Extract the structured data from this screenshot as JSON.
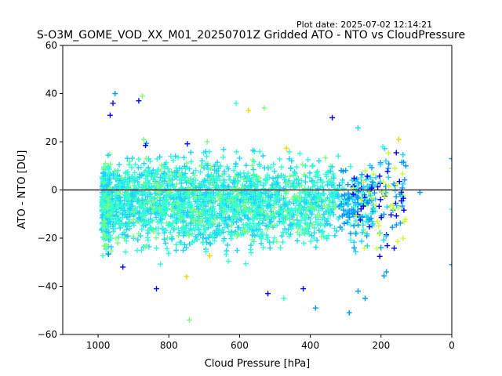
{
  "header": {
    "plot_date": "Plot date: 2025-07-02 12:14:21"
  },
  "chart_data": {
    "type": "scatter",
    "title": "S-O3M_GOME_VOD_XX_M01_20250701Z Gridded ATO - NTO vs CloudPressure",
    "xlabel": "Cloud Pressure [hPa]",
    "ylabel": "ATO - NTO [DU]",
    "xlim": [
      1100,
      0
    ],
    "ylim": [
      -60,
      60
    ],
    "x_inverted": true,
    "xticks": [
      1000,
      800,
      600,
      400,
      200,
      0
    ],
    "yticks": [
      60,
      40,
      20,
      0,
      -20,
      -40,
      -60
    ],
    "reference_line_y": 0,
    "marker": "+",
    "colors": [
      "#0000ff",
      "#0096ff",
      "#1ed2ff",
      "#31ffd4",
      "#7dff7a",
      "#c8ff2f",
      "#ffd200",
      "#ff9a00"
    ],
    "point_density_note_cloud": {
      "x_range_dense": [
        990,
        210
      ],
      "y_mean": -5,
      "y_spread_range": [
        -33,
        22
      ]
    },
    "outliers": [
      {
        "x": 952,
        "y": 40,
        "c": "#0096ff"
      },
      {
        "x": 958,
        "y": 36,
        "c": "#0000ff"
      },
      {
        "x": 966,
        "y": 31,
        "c": "#0000ff"
      },
      {
        "x": 885,
        "y": 37,
        "c": "#0000ff"
      },
      {
        "x": 875,
        "y": 39,
        "c": "#7dff7a"
      },
      {
        "x": 610,
        "y": 36,
        "c": "#31ffd4"
      },
      {
        "x": 530,
        "y": 34,
        "c": "#7dff7a"
      },
      {
        "x": 575,
        "y": 33,
        "c": "#ffd200"
      },
      {
        "x": 338,
        "y": 30,
        "c": "#0000ff"
      },
      {
        "x": 150,
        "y": 21,
        "c": "#ffd200"
      },
      {
        "x": 195,
        "y": 18,
        "c": "#31ffd4"
      },
      {
        "x": 130,
        "y": 10,
        "c": "#0096ff"
      },
      {
        "x": 0,
        "y": 13,
        "c": "#0096ff"
      },
      {
        "x": 0,
        "y": 9,
        "c": "#7dff7a"
      },
      {
        "x": 90,
        "y": -1,
        "c": "#0096ff"
      },
      {
        "x": 0,
        "y": -8,
        "c": "#31ffd4"
      },
      {
        "x": 0,
        "y": -31,
        "c": "#0096ff"
      },
      {
        "x": 185,
        "y": -34,
        "c": "#0096ff"
      },
      {
        "x": 835,
        "y": -41,
        "c": "#0000ff"
      },
      {
        "x": 520,
        "y": -43,
        "c": "#0000ff"
      },
      {
        "x": 475,
        "y": -45,
        "c": "#31ffd4"
      },
      {
        "x": 385,
        "y": -49,
        "c": "#0096ff"
      },
      {
        "x": 290,
        "y": -51,
        "c": "#0096ff"
      },
      {
        "x": 742,
        "y": -54,
        "c": "#7dff7a"
      },
      {
        "x": 245,
        "y": -45,
        "c": "#0096ff"
      },
      {
        "x": 265,
        "y": -42,
        "c": "#0096ff"
      },
      {
        "x": 750,
        "y": -36,
        "c": "#ffd200"
      },
      {
        "x": 930,
        "y": -32,
        "c": "#0000ff"
      },
      {
        "x": 420,
        "y": -41,
        "c": "#0000ff"
      }
    ]
  }
}
